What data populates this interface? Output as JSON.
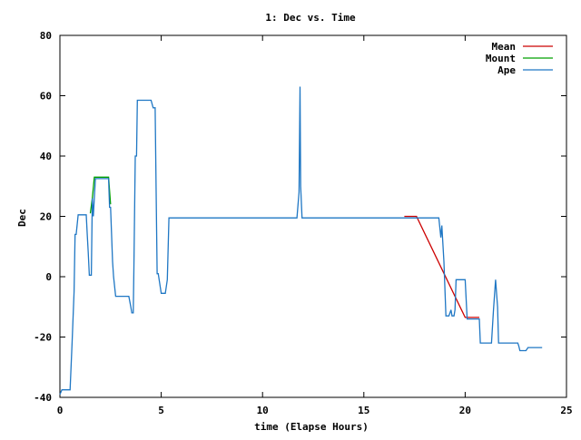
{
  "chart_data": {
    "type": "line",
    "title": "1: Dec vs. Time",
    "xlabel": "time (Elapse Hours)",
    "ylabel": "Dec",
    "xlim": [
      0,
      25
    ],
    "ylim": [
      -40,
      80
    ],
    "xticks": [
      0,
      5,
      10,
      15,
      20,
      25
    ],
    "yticks": [
      -40,
      -20,
      0,
      20,
      40,
      60,
      80
    ],
    "grid": false,
    "legend_position": "top-right",
    "series": [
      {
        "name": "Mean",
        "color": "#cc0000",
        "points": [
          [
            17.0,
            20
          ],
          [
            17.6,
            20
          ],
          [
            20.0,
            -13.5
          ],
          [
            20.7,
            -13.5
          ]
        ]
      },
      {
        "name": "Mount",
        "color": "#00a000",
        "points": [
          [
            1.5,
            21
          ],
          [
            1.6,
            26
          ],
          [
            1.7,
            33
          ],
          [
            2.0,
            33
          ],
          [
            2.4,
            33
          ],
          [
            2.5,
            24
          ]
        ]
      },
      {
        "name": "Ape",
        "color": "#1f77c4",
        "points": [
          [
            0.0,
            -39
          ],
          [
            0.1,
            -37.5
          ],
          [
            0.5,
            -37.5
          ],
          [
            0.6,
            -22
          ],
          [
            0.7,
            -5
          ],
          [
            0.75,
            14
          ],
          [
            0.8,
            14
          ],
          [
            0.9,
            20.5
          ],
          [
            1.2,
            20.5
          ],
          [
            1.3,
            20.5
          ],
          [
            1.35,
            14
          ],
          [
            1.4,
            8
          ],
          [
            1.45,
            0.5
          ],
          [
            1.55,
            0.5
          ],
          [
            1.6,
            26
          ],
          [
            1.65,
            20
          ],
          [
            1.7,
            26
          ],
          [
            1.75,
            32.5
          ],
          [
            2.4,
            32.5
          ],
          [
            2.45,
            23
          ],
          [
            2.5,
            23
          ],
          [
            2.55,
            14
          ],
          [
            2.6,
            5
          ],
          [
            2.65,
            0
          ],
          [
            2.75,
            -6.5
          ],
          [
            3.4,
            -6.5
          ],
          [
            3.5,
            -10
          ],
          [
            3.55,
            -12
          ],
          [
            3.62,
            -12
          ],
          [
            3.65,
            3
          ],
          [
            3.72,
            40
          ],
          [
            3.78,
            40
          ],
          [
            3.82,
            58.5
          ],
          [
            4.5,
            58.5
          ],
          [
            4.6,
            56
          ],
          [
            4.7,
            56
          ],
          [
            4.75,
            28
          ],
          [
            4.8,
            1
          ],
          [
            4.85,
            1
          ],
          [
            5.0,
            -5.5
          ],
          [
            5.2,
            -5.5
          ],
          [
            5.3,
            -1
          ],
          [
            5.38,
            19.5
          ],
          [
            11.7,
            19.5
          ],
          [
            11.8,
            28
          ],
          [
            11.85,
            63
          ],
          [
            11.88,
            30
          ],
          [
            11.95,
            19.5
          ],
          [
            18.7,
            19.5
          ],
          [
            18.8,
            13
          ],
          [
            18.85,
            17
          ],
          [
            18.95,
            5
          ],
          [
            19.05,
            -13
          ],
          [
            19.2,
            -13
          ],
          [
            19.3,
            -11
          ],
          [
            19.35,
            -13
          ],
          [
            19.45,
            -13
          ],
          [
            19.5,
            -11
          ],
          [
            19.55,
            -1
          ],
          [
            20.0,
            -1
          ],
          [
            20.1,
            -14
          ],
          [
            20.7,
            -14
          ],
          [
            20.75,
            -22
          ],
          [
            21.3,
            -22
          ],
          [
            21.4,
            -11
          ],
          [
            21.5,
            -1
          ],
          [
            21.6,
            -10
          ],
          [
            21.65,
            -22
          ],
          [
            22.6,
            -22
          ],
          [
            22.65,
            -23
          ],
          [
            22.7,
            -24.5
          ],
          [
            23.0,
            -24.5
          ],
          [
            23.1,
            -23.5
          ],
          [
            23.8,
            -23.5
          ]
        ]
      }
    ]
  }
}
